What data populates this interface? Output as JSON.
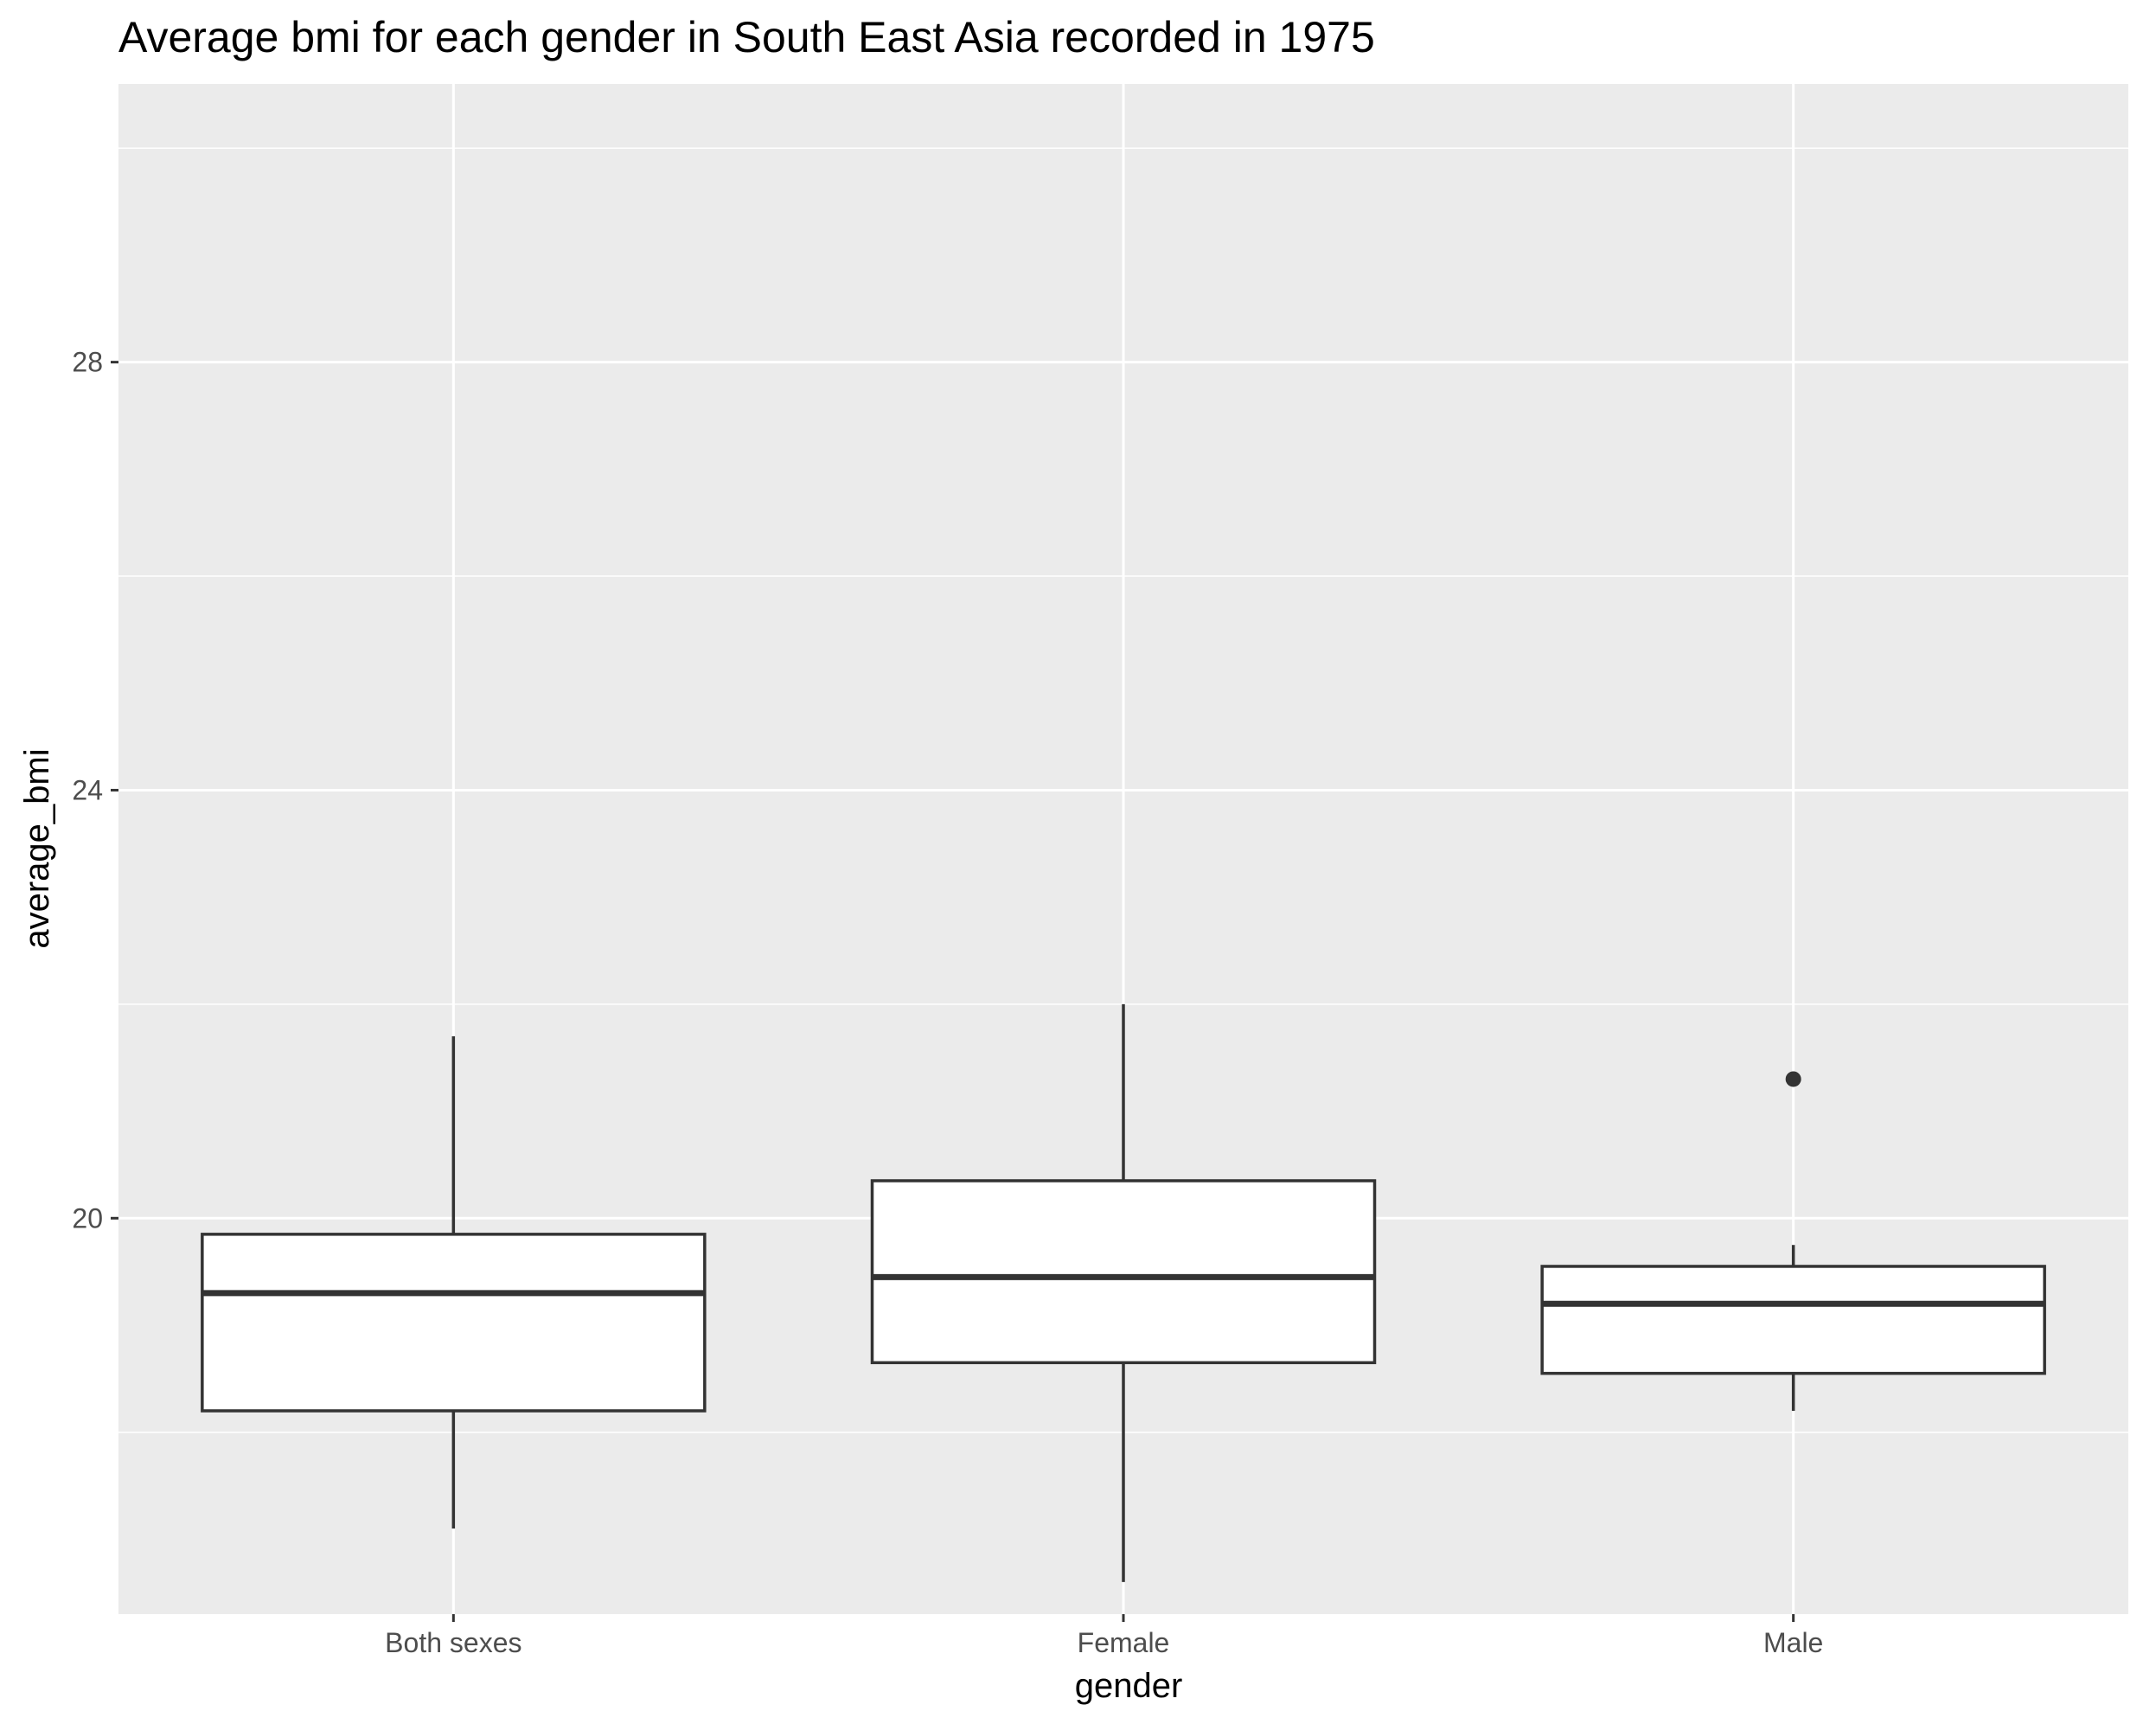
{
  "chart_data": {
    "type": "boxplot",
    "title": "Average bmi for each gender in South East Asia recorded in 1975",
    "xlabel": "gender",
    "ylabel": "average_bmi",
    "ylim": [
      16.3,
      30.6
    ],
    "y_ticks": [
      20,
      24,
      28
    ],
    "y_tick_labels": [
      "20",
      "24",
      "28"
    ],
    "y_minor_gridlines": [
      18,
      22,
      26,
      30
    ],
    "grid": true,
    "categories": [
      "Both sexes",
      "Female",
      "Male"
    ],
    "boxes": [
      {
        "category": "Both sexes",
        "whisker_low": 17.1,
        "q1": 18.2,
        "median": 19.3,
        "q3": 19.85,
        "whisker_high": 21.7,
        "outliers": []
      },
      {
        "category": "Female",
        "whisker_low": 16.6,
        "q1": 18.65,
        "median": 19.45,
        "q3": 20.35,
        "whisker_high": 22.0,
        "outliers": []
      },
      {
        "category": "Male",
        "whisker_low": 18.2,
        "q1": 18.55,
        "median": 19.2,
        "q3": 19.55,
        "whisker_high": 19.75,
        "outliers": [
          21.3
        ]
      }
    ],
    "colors": {
      "panel_background": "#ebebeb",
      "gridline": "#ffffff",
      "box_fill": "#ffffff",
      "box_stroke": "#333333",
      "tick": "#333333"
    }
  }
}
